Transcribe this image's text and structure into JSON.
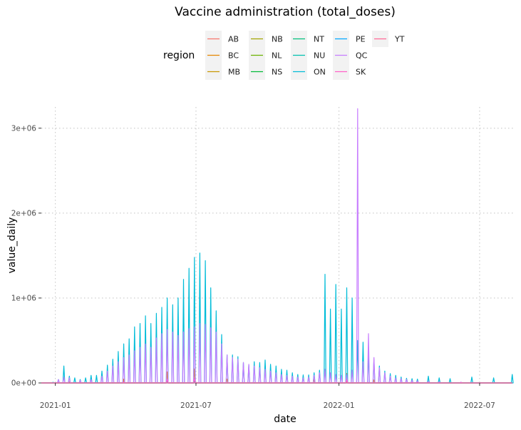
{
  "chart_data": {
    "type": "line",
    "title": "Vaccine administration (total_doses)",
    "xlabel": "date",
    "ylabel": "value_daily",
    "x_range": [
      "2020-12-14",
      "2022-08-15"
    ],
    "ylim": [
      0,
      3250000
    ],
    "x_ticks": [
      {
        "date": "2021-01-01",
        "label": "2021-01"
      },
      {
        "date": "2021-07-01",
        "label": "2021-07"
      },
      {
        "date": "2022-01-01",
        "label": "2022-01"
      },
      {
        "date": "2022-07-01",
        "label": "2022-07"
      }
    ],
    "y_ticks": [
      {
        "value": 0,
        "label": "0e+00"
      },
      {
        "value": 1000000,
        "label": "1e+06"
      },
      {
        "value": 2000000,
        "label": "2e+06"
      },
      {
        "value": 3000000,
        "label": "3e+06"
      }
    ],
    "grid": true,
    "legend": {
      "title": "region",
      "position": "top",
      "columns": [
        [
          "AB",
          "BC",
          "MB"
        ],
        [
          "NB",
          "NL",
          "NS"
        ],
        [
          "NT",
          "NU",
          "ON"
        ],
        [
          "PE",
          "QC",
          "SK"
        ],
        [
          "YT"
        ]
      ]
    },
    "series": [
      {
        "name": "AB",
        "color": "#F8766D",
        "peaks": [
          [
            "2021-01-19",
            8000
          ],
          [
            "2021-03-30",
            30000
          ],
          [
            "2021-05-25",
            110000
          ],
          [
            "2021-06-29",
            150000
          ],
          [
            "2021-08-10",
            40000
          ],
          [
            "2021-11-30",
            35000
          ],
          [
            "2022-01-11",
            90000
          ],
          [
            "2022-02-15",
            30000
          ]
        ]
      },
      {
        "name": "BC",
        "color": "#E58700",
        "peaks": [
          [
            "2021-01-19",
            10000
          ],
          [
            "2021-03-30",
            45000
          ],
          [
            "2021-05-25",
            130000
          ],
          [
            "2021-06-29",
            165000
          ],
          [
            "2021-08-10",
            45000
          ],
          [
            "2021-11-30",
            40000
          ],
          [
            "2022-01-11",
            110000
          ],
          [
            "2022-02-15",
            35000
          ]
        ]
      },
      {
        "name": "MB",
        "color": "#C99800",
        "peaks": [
          [
            "2021-03-30",
            12000
          ],
          [
            "2021-05-25",
            40000
          ],
          [
            "2021-06-29",
            55000
          ],
          [
            "2022-01-11",
            30000
          ]
        ]
      },
      {
        "name": "NB",
        "color": "#A3A500",
        "peaks": [
          [
            "2021-03-30",
            7000
          ],
          [
            "2021-05-25",
            25000
          ],
          [
            "2021-06-29",
            30000
          ],
          [
            "2022-01-11",
            18000
          ]
        ]
      },
      {
        "name": "NL",
        "color": "#6BB100",
        "peaks": [
          [
            "2021-05-25",
            15000
          ],
          [
            "2021-06-29",
            20000
          ],
          [
            "2022-01-11",
            12000
          ]
        ]
      },
      {
        "name": "NS",
        "color": "#00BA38",
        "peaks": [
          [
            "2021-03-30",
            10000
          ],
          [
            "2021-05-25",
            35000
          ],
          [
            "2021-06-29",
            45000
          ],
          [
            "2022-01-11",
            25000
          ]
        ]
      },
      {
        "name": "NT",
        "color": "#00BF7D",
        "peaks": [
          [
            "2021-03-02",
            3000
          ],
          [
            "2021-06-01",
            2000
          ]
        ]
      },
      {
        "name": "NU",
        "color": "#00C0AF",
        "peaks": [
          [
            "2021-03-02",
            2000
          ],
          [
            "2021-06-01",
            1500
          ]
        ]
      },
      {
        "name": "ON",
        "color": "#00BCD8",
        "peaks": [
          [
            "2020-12-29",
            8000
          ],
          [
            "2021-01-05",
            40000
          ],
          [
            "2021-01-12",
            200000
          ],
          [
            "2021-01-19",
            80000
          ],
          [
            "2021-01-26",
            60000
          ],
          [
            "2021-02-02",
            40000
          ],
          [
            "2021-02-09",
            60000
          ],
          [
            "2021-02-16",
            90000
          ],
          [
            "2021-02-23",
            90000
          ],
          [
            "2021-03-02",
            140000
          ],
          [
            "2021-03-09",
            210000
          ],
          [
            "2021-03-16",
            280000
          ],
          [
            "2021-03-23",
            370000
          ],
          [
            "2021-03-30",
            460000
          ],
          [
            "2021-04-06",
            520000
          ],
          [
            "2021-04-13",
            660000
          ],
          [
            "2021-04-20",
            700000
          ],
          [
            "2021-04-27",
            790000
          ],
          [
            "2021-05-04",
            700000
          ],
          [
            "2021-05-11",
            820000
          ],
          [
            "2021-05-18",
            890000
          ],
          [
            "2021-05-25",
            1000000
          ],
          [
            "2021-06-01",
            920000
          ],
          [
            "2021-06-08",
            1000000
          ],
          [
            "2021-06-15",
            1220000
          ],
          [
            "2021-06-22",
            1350000
          ],
          [
            "2021-06-29",
            1480000
          ],
          [
            "2021-07-06",
            1530000
          ],
          [
            "2021-07-13",
            1440000
          ],
          [
            "2021-07-20",
            1120000
          ],
          [
            "2021-07-27",
            850000
          ],
          [
            "2021-08-03",
            570000
          ],
          [
            "2021-08-10",
            330000
          ],
          [
            "2021-08-17",
            330000
          ],
          [
            "2021-08-24",
            310000
          ],
          [
            "2021-08-31",
            240000
          ],
          [
            "2021-09-07",
            210000
          ],
          [
            "2021-09-14",
            250000
          ],
          [
            "2021-09-21",
            240000
          ],
          [
            "2021-09-28",
            270000
          ],
          [
            "2021-10-05",
            220000
          ],
          [
            "2021-10-12",
            200000
          ],
          [
            "2021-10-19",
            160000
          ],
          [
            "2021-10-26",
            150000
          ],
          [
            "2021-11-02",
            120000
          ],
          [
            "2021-11-09",
            100000
          ],
          [
            "2021-11-16",
            95000
          ],
          [
            "2021-11-23",
            95000
          ],
          [
            "2021-11-30",
            120000
          ],
          [
            "2021-12-07",
            150000
          ],
          [
            "2021-12-14",
            1280000
          ],
          [
            "2021-12-21",
            870000
          ],
          [
            "2021-12-28",
            1160000
          ],
          [
            "2022-01-04",
            870000
          ],
          [
            "2022-01-11",
            1120000
          ],
          [
            "2022-01-18",
            1000000
          ],
          [
            "2022-01-25",
            500000
          ],
          [
            "2022-02-01",
            480000
          ],
          [
            "2022-02-08",
            350000
          ],
          [
            "2022-02-15",
            270000
          ],
          [
            "2022-02-22",
            200000
          ],
          [
            "2022-03-01",
            140000
          ],
          [
            "2022-03-08",
            110000
          ],
          [
            "2022-03-15",
            90000
          ],
          [
            "2022-03-22",
            70000
          ],
          [
            "2022-03-29",
            55000
          ],
          [
            "2022-04-05",
            50000
          ],
          [
            "2022-04-12",
            45000
          ],
          [
            "2022-04-26",
            80000
          ],
          [
            "2022-05-10",
            60000
          ],
          [
            "2022-05-24",
            50000
          ],
          [
            "2022-06-21",
            70000
          ],
          [
            "2022-07-19",
            60000
          ],
          [
            "2022-08-12",
            100000
          ]
        ]
      },
      {
        "name": "PE",
        "color": "#00A9FF",
        "peaks": [
          [
            "2021-05-25",
            8000
          ],
          [
            "2021-06-29",
            10000
          ]
        ]
      },
      {
        "name": "QC",
        "color": "#C77CFF",
        "peaks": [
          [
            "2021-01-05",
            40000
          ],
          [
            "2021-01-12",
            70000
          ],
          [
            "2021-01-19",
            60000
          ],
          [
            "2021-02-02",
            30000
          ],
          [
            "2021-02-16",
            40000
          ],
          [
            "2021-03-02",
            80000
          ],
          [
            "2021-03-09",
            140000
          ],
          [
            "2021-03-16",
            200000
          ],
          [
            "2021-03-23",
            250000
          ],
          [
            "2021-03-30",
            300000
          ],
          [
            "2021-04-06",
            330000
          ],
          [
            "2021-04-13",
            380000
          ],
          [
            "2021-04-20",
            420000
          ],
          [
            "2021-04-27",
            460000
          ],
          [
            "2021-05-04",
            420000
          ],
          [
            "2021-05-11",
            530000
          ],
          [
            "2021-05-18",
            580000
          ],
          [
            "2021-05-25",
            630000
          ],
          [
            "2021-06-01",
            600000
          ],
          [
            "2021-06-08",
            560000
          ],
          [
            "2021-06-15",
            600000
          ],
          [
            "2021-06-22",
            640000
          ],
          [
            "2021-06-29",
            660000
          ],
          [
            "2021-07-06",
            700000
          ],
          [
            "2021-07-13",
            690000
          ],
          [
            "2021-07-20",
            650000
          ],
          [
            "2021-07-27",
            600000
          ],
          [
            "2021-08-03",
            460000
          ],
          [
            "2021-08-10",
            330000
          ],
          [
            "2021-08-17",
            300000
          ],
          [
            "2021-08-24",
            280000
          ],
          [
            "2021-08-31",
            240000
          ],
          [
            "2021-09-07",
            220000
          ],
          [
            "2021-09-14",
            200000
          ],
          [
            "2021-09-21",
            180000
          ],
          [
            "2021-09-28",
            160000
          ],
          [
            "2021-10-05",
            140000
          ],
          [
            "2021-10-12",
            120000
          ],
          [
            "2021-10-19",
            100000
          ],
          [
            "2021-10-26",
            90000
          ],
          [
            "2021-11-02",
            80000
          ],
          [
            "2021-11-09",
            70000
          ],
          [
            "2021-11-16",
            60000
          ],
          [
            "2021-11-23",
            70000
          ],
          [
            "2021-11-30",
            90000
          ],
          [
            "2021-12-07",
            120000
          ],
          [
            "2021-12-14",
            160000
          ],
          [
            "2021-12-21",
            120000
          ],
          [
            "2021-12-28",
            100000
          ],
          [
            "2022-01-04",
            90000
          ],
          [
            "2022-01-11",
            100000
          ],
          [
            "2022-01-18",
            150000
          ],
          [
            "2022-01-25",
            3230000
          ],
          [
            "2022-02-01",
            250000
          ],
          [
            "2022-02-08",
            580000
          ],
          [
            "2022-02-15",
            300000
          ],
          [
            "2022-02-22",
            180000
          ],
          [
            "2022-03-01",
            120000
          ],
          [
            "2022-03-08",
            80000
          ],
          [
            "2022-03-15",
            60000
          ],
          [
            "2022-03-22",
            50000
          ],
          [
            "2022-03-29",
            40000
          ],
          [
            "2022-04-05",
            30000
          ],
          [
            "2022-04-12",
            25000
          ],
          [
            "2022-04-26",
            20000
          ],
          [
            "2022-05-10",
            15000
          ],
          [
            "2022-06-07",
            10000
          ]
        ]
      },
      {
        "name": "SK",
        "color": "#FF61C9",
        "peaks": [
          [
            "2021-03-30",
            10000
          ],
          [
            "2021-05-25",
            40000
          ],
          [
            "2021-06-29",
            50000
          ],
          [
            "2022-01-11",
            30000
          ]
        ]
      },
      {
        "name": "YT",
        "color": "#FF6A98",
        "peaks": [
          [
            "2021-03-02",
            2000
          ],
          [
            "2021-06-01",
            1500
          ]
        ]
      }
    ]
  }
}
